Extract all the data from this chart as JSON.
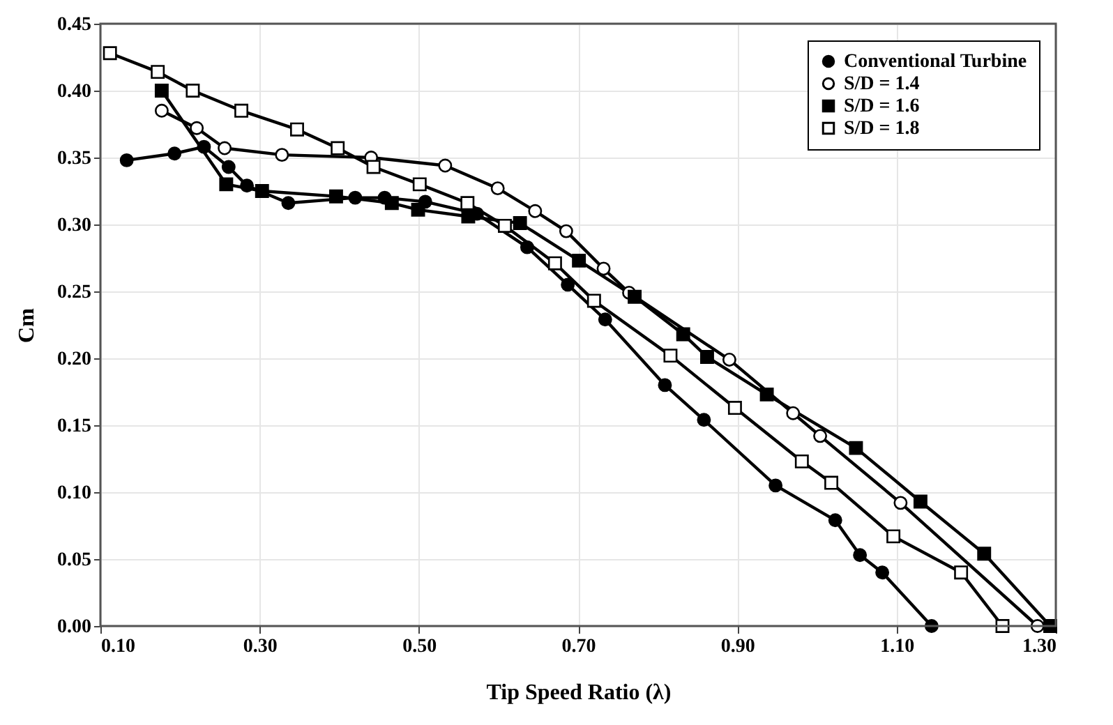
{
  "chart_data": {
    "type": "line",
    "xlabel": "Tip Speed Ratio (λ)",
    "ylabel": "Cm",
    "xlim": [
      0.1,
      1.3
    ],
    "xticks": [
      {
        "value": 0.1,
        "label": "0.10"
      },
      {
        "value": 0.3,
        "label": "0.30"
      },
      {
        "value": 0.5,
        "label": "0.50"
      },
      {
        "value": 0.7,
        "label": "0.70"
      },
      {
        "value": 0.9,
        "label": "0.90"
      },
      {
        "value": 1.1,
        "label": "1.10"
      },
      {
        "value": 1.3,
        "label": "1.30"
      }
    ],
    "ylim": [
      0,
      0.45
    ],
    "yticks": [
      {
        "value": 0,
        "label": "0.00"
      },
      0.05,
      {
        "value": 0.1,
        "label": "0.10"
      },
      0.15,
      {
        "value": 0.2,
        "label": "0.20"
      },
      0.25,
      {
        "value": 0.3,
        "label": "0.30"
      },
      0.35,
      {
        "value": 0.4,
        "label": "0.40"
      },
      0.45
    ],
    "grid": true,
    "legend": "top right",
    "line_style": "solid",
    "series": [
      {
        "name": "Conventional Turbine",
        "color": "#000000",
        "marker": "circle",
        "x": [
          0.133,
          0.193,
          0.23,
          0.261,
          0.284,
          0.336,
          0.42,
          0.457,
          0.508,
          0.573,
          0.636,
          0.687,
          0.734,
          0.809,
          0.858,
          0.948,
          1.023,
          1.054,
          1.082,
          1.144
        ],
        "values": [
          0.348,
          0.353,
          0.358,
          0.343,
          0.329,
          0.316,
          0.32,
          0.32,
          0.317,
          0.308,
          0.283,
          0.255,
          0.229,
          0.18,
          0.154,
          0.105,
          0.079,
          0.053,
          0.04,
          0.0
        ]
      },
      {
        "name": "S/D = 1.4",
        "color": "#000000",
        "marker": "circle",
        "x": [
          0.177,
          0.221,
          0.256,
          0.328,
          0.44,
          0.533,
          0.599,
          0.646,
          0.685,
          0.732,
          0.764,
          0.89,
          0.97,
          1.004,
          1.105,
          1.277
        ],
        "values": [
          0.385,
          0.372,
          0.357,
          0.352,
          0.35,
          0.344,
          0.327,
          0.31,
          0.295,
          0.267,
          0.249,
          0.199,
          0.159,
          0.142,
          0.092,
          0.0
        ]
      },
      {
        "name": "S/D = 1.6",
        "color": "#000000",
        "marker": "square",
        "x": [
          0.177,
          0.258,
          0.303,
          0.396,
          0.466,
          0.499,
          0.562,
          0.627,
          0.701,
          0.771,
          0.832,
          0.862,
          0.937,
          1.049,
          1.13,
          1.21,
          1.293
        ],
        "values": [
          0.4,
          0.33,
          0.325,
          0.321,
          0.316,
          0.311,
          0.306,
          0.301,
          0.273,
          0.246,
          0.218,
          0.201,
          0.173,
          0.133,
          0.093,
          0.054,
          0.0
        ]
      },
      {
        "name": "S/D = 1.8",
        "color": "#000000",
        "marker": "square",
        "x": [
          0.112,
          0.172,
          0.216,
          0.277,
          0.347,
          0.398,
          0.443,
          0.501,
          0.561,
          0.608,
          0.671,
          0.72,
          0.816,
          0.897,
          0.981,
          1.018,
          1.096,
          1.181,
          1.233
        ],
        "values": [
          0.428,
          0.414,
          0.4,
          0.385,
          0.371,
          0.357,
          0.343,
          0.33,
          0.316,
          0.299,
          0.271,
          0.243,
          0.202,
          0.163,
          0.123,
          0.107,
          0.067,
          0.04,
          0.0
        ]
      }
    ]
  }
}
